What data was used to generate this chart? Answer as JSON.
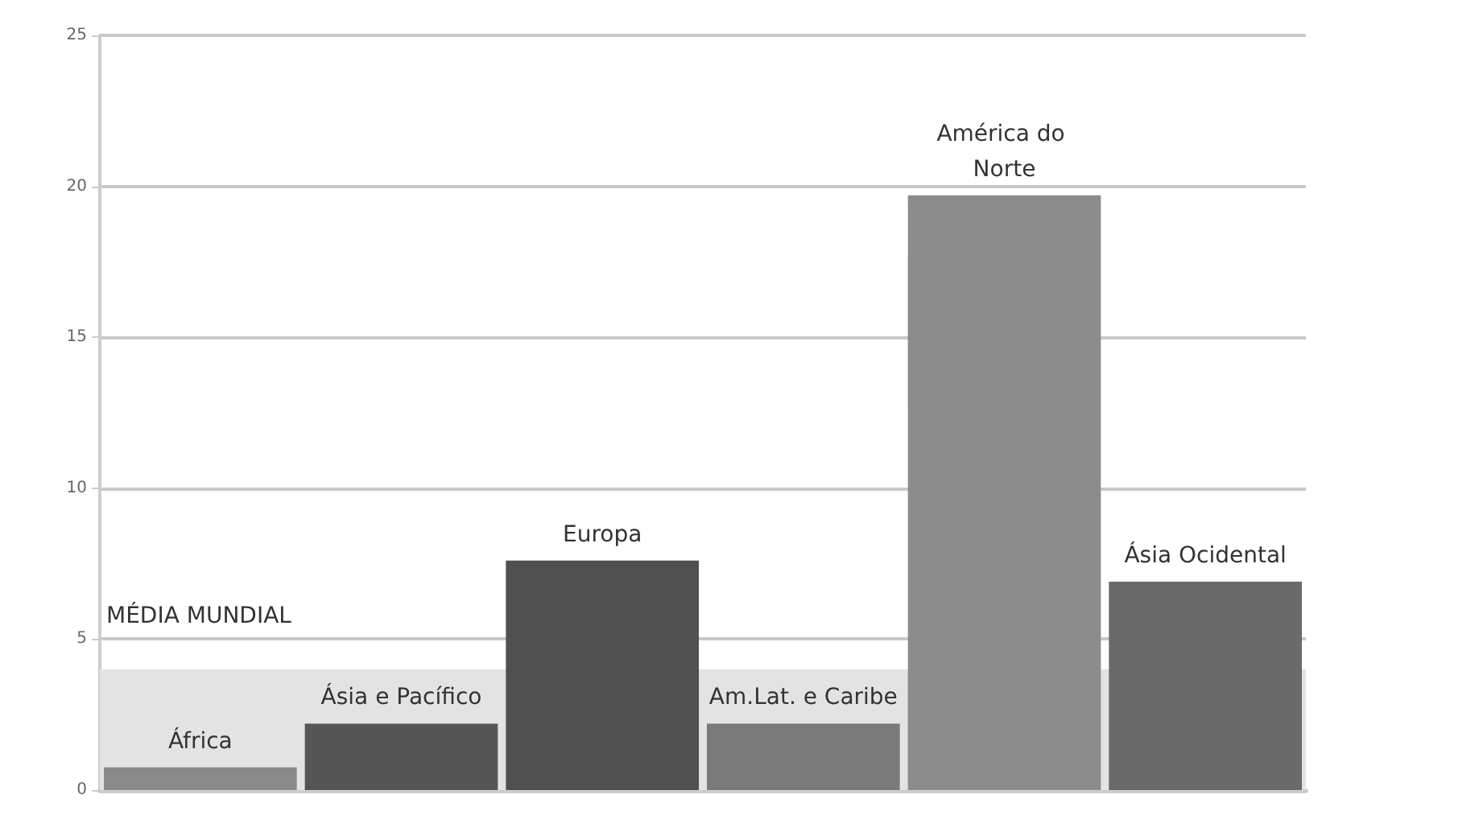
{
  "chart_data": {
    "type": "bar",
    "categories": [
      "África",
      "Ásia e Pacífico",
      "Europa",
      "Am.Lat. e Caribe",
      "América do Norte",
      "Ásia Ocidental"
    ],
    "values": [
      0.75,
      2.2,
      7.6,
      2.2,
      19.7,
      6.9
    ],
    "colors": [
      "#8a8a8a",
      "#555555",
      "#505050",
      "#7a7a7a",
      "#8c8c8c",
      "#6a6a6a"
    ],
    "ylim": [
      0,
      25
    ],
    "yticks": [
      0,
      5,
      10,
      15,
      20,
      25
    ],
    "grid": "y",
    "tick_labels": "y",
    "bands": [
      {
        "axis": "y",
        "from": 0,
        "to": 4,
        "label": "MÉDIA MUNDIAL",
        "color": "#e3e3e3"
      }
    ]
  }
}
